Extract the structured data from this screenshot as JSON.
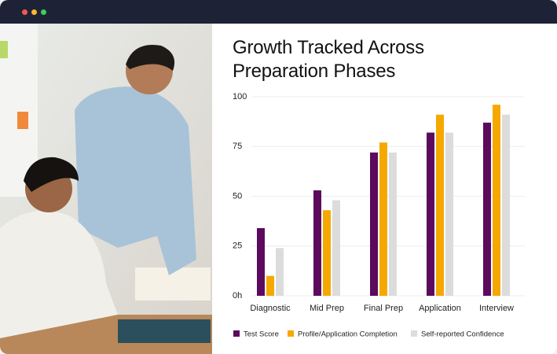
{
  "chart_data": {
    "type": "bar",
    "title": "Growth Tracked Across Preparation Phases",
    "categories": [
      "Diagnostic",
      "Mid Prep",
      "Final Prep",
      "Application",
      "Interview"
    ],
    "series": [
      {
        "name": "Test Score",
        "color": "#5b0a5e",
        "values": [
          34,
          53,
          72,
          82,
          87
        ]
      },
      {
        "name": "Profile/Application Completion",
        "color": "#f5a800",
        "values": [
          10,
          43,
          77,
          91,
          96
        ]
      },
      {
        "name": "Self-reported Confidence",
        "color": "#dcdcdc",
        "values": [
          24,
          48,
          72,
          82,
          91
        ]
      }
    ],
    "ylim": [
      0,
      100
    ],
    "yticks": [
      {
        "value": 0,
        "label": "0h"
      },
      25,
      50,
      75,
      100
    ],
    "grid": true,
    "legend": "bottom"
  }
}
